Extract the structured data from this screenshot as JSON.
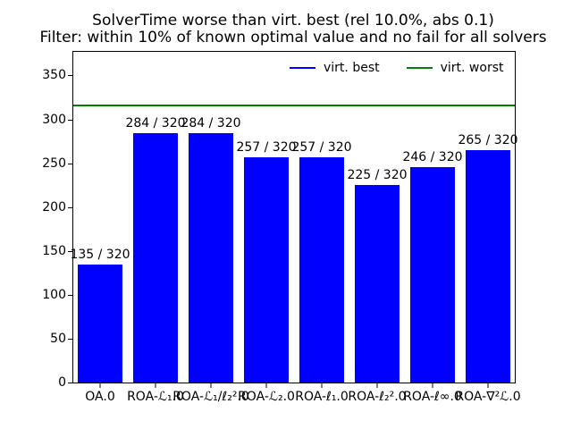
{
  "title": {
    "line1": "SolverTime worse than virt. best (rel 10.0%, abs 0.1)",
    "line2": "Filter: within 10% of known optimal value and no fail for all solvers"
  },
  "legend": {
    "items": [
      {
        "label": "virt. best",
        "color": "#0000ff"
      },
      {
        "label": "virt. worst",
        "color": "#008000"
      }
    ]
  },
  "chart_data": {
    "type": "bar",
    "title": "SolverTime worse than virt. best (rel 10.0%, abs 0.1)\nFilter: within 10% of known optimal value and no fail for all solvers",
    "categories": [
      "OA.0",
      "ROA-ℒ₁.0",
      "ROA-ℒ₁/ℓ₂².0",
      "ROA-ℒ₂.0",
      "ROA-ℓ₁.0",
      "ROA-ℓ₂².0",
      "ROA-ℓ∞.0",
      "ROA-∇²ℒ.0"
    ],
    "values": [
      135,
      284,
      284,
      257,
      257,
      225,
      246,
      265
    ],
    "total": 320,
    "bar_labels": [
      "135 / 320",
      "284 / 320",
      "284 / 320",
      "257 / 320",
      "257 / 320",
      "225 / 320",
      "246 / 320",
      "265 / 320"
    ],
    "bar_color": "#0000ff",
    "virt_worst_line": {
      "value": 316,
      "color": "#008000",
      "label": "virt. worst"
    },
    "virt_best_legend": {
      "color": "#0000ff",
      "label": "virt. best"
    },
    "xlabel": "",
    "ylabel": "",
    "yticks": [
      0,
      50,
      100,
      150,
      200,
      250,
      300,
      350
    ],
    "ylim": [
      0,
      377
    ],
    "grid": false,
    "legend_position": "upper center inside plot, frameless"
  }
}
